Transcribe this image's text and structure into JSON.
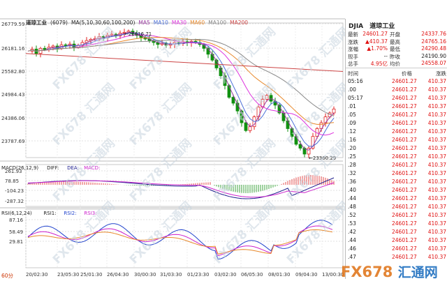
{
  "chart": {
    "name": "道琼工业",
    "code": "6079",
    "ma_label": "MA(5,10,30,60,100,200)",
    "ma_series": [
      {
        "name": "MA5",
        "color": "#9a3aa0"
      },
      {
        "name": "MA10",
        "color": "#4b6fd8"
      },
      {
        "name": "MA30",
        "color": "#dd33dd"
      },
      {
        "name": "MA60",
        "color": "#e8882a"
      },
      {
        "name": "MA100",
        "color": "#888888"
      },
      {
        "name": "MA200",
        "color": "#cc4444"
      }
    ],
    "price_ticks": [
      "26779.59",
      "26181.16",
      "25582.80",
      "24984.43",
      "24386.06",
      "23787.69"
    ],
    "high_label": "26616.71",
    "low_label": "23360.29",
    "macd_label": "MACD(26,12,9)",
    "macd_series": [
      "DIFF:",
      "DEA:",
      "MACD:"
    ],
    "macd_ticks": [
      "261.93",
      "78.85",
      "-104.23",
      "-287.32"
    ],
    "rsi_label": "RSI(6,12,24)",
    "rsi_series": [
      "RSI1:",
      "RSI2:",
      "RSI3:"
    ],
    "rsi_ticks": [
      "87.16",
      "58.49",
      "29.81"
    ],
    "date_ticks": [
      "20/02:30",
      "23/05:30",
      "25/01:30",
      "26/04:30",
      "30/00:30",
      "31/03:30",
      "01/23:30",
      "03/02:30",
      "06/05:30",
      "08/01:30",
      "09/04:30",
      "13/00:30"
    ],
    "period_label": "60分",
    "watermark": "FX678 汇通网"
  },
  "chart_data": {
    "type": "candlestick",
    "ylim": [
      23400,
      26779.59
    ],
    "high": 26616.71,
    "low": 23360.29,
    "close": 24601.27,
    "ma_colors": {
      "MA5": "#9a3aa0",
      "MA10": "#4b6fd8",
      "MA30": "#dd33dd",
      "MA60": "#e8882a",
      "MA100": "#888888",
      "MA200": "#cc4444"
    },
    "macd_ylim": [
      -287.32,
      261.93
    ],
    "rsi_ylim": [
      0,
      100
    ]
  },
  "panel": {
    "code": "DJIA",
    "name": "道琼工业",
    "rows": [
      {
        "l1": "最新",
        "v1": "24601.27",
        "c1": "up",
        "l2": "开盘",
        "v2": "24337.76",
        "c2": "up"
      },
      {
        "l1": "涨跌",
        "v1": "▲410.37",
        "c1": "up",
        "l2": "最高",
        "v2": "24765.16",
        "c2": "up"
      },
      {
        "l1": "涨幅",
        "v1": "▲1.70%",
        "c1": "up",
        "l2": "最低",
        "v2": "24290.48",
        "c2": "up"
      },
      {
        "l1": "现手",
        "v1": "--",
        "c1": "",
        "l2": "昨收",
        "v2": "24190.90",
        "c2": ""
      },
      {
        "l1": "总手",
        "v1": "4.95亿",
        "c1": "up",
        "l2": "均价",
        "v2": "24558.07",
        "c2": "up"
      }
    ],
    "table_headers": {
      "time": "时间",
      "price": "价格",
      "change": "涨跌"
    },
    "ticks": [
      {
        "time": "05:16",
        "price": "24601.27",
        "change": "410.37"
      },
      {
        "time": ".00",
        "price": "24601.27",
        "change": "410.37"
      },
      {
        "time": "05:17",
        "price": "24601.27",
        "change": "410.37"
      },
      {
        "time": ".01",
        "price": "24601.27",
        "change": "410.37"
      },
      {
        "time": ".05",
        "price": "24601.27",
        "change": "410.37"
      },
      {
        "time": ".09",
        "price": "24601.27",
        "change": "410.37"
      },
      {
        "time": ".12",
        "price": "24601.27",
        "change": "410.37"
      },
      {
        "time": ".16",
        "price": "24601.27",
        "change": "410.37"
      },
      {
        "time": ".20",
        "price": "24601.27",
        "change": "410.37"
      },
      {
        "time": ".25",
        "price": "24601.27",
        "change": "410.37"
      },
      {
        "time": ".28",
        "price": "24601.27",
        "change": "410.37"
      },
      {
        "time": ".32",
        "price": "24601.27",
        "change": "410.37"
      },
      {
        "time": ".36",
        "price": "24601.27",
        "change": "410.37"
      },
      {
        "time": ".40",
        "price": "24601.27",
        "change": "410.37"
      },
      {
        "time": ".44",
        "price": "24601.27",
        "change": "410.37"
      },
      {
        "time": ".48",
        "price": "24601.27",
        "change": "410.37"
      },
      {
        "time": ".52",
        "price": "24601.27",
        "change": "410.37"
      },
      {
        "time": ".53",
        "price": "24601.27",
        "change": "410.37"
      },
      {
        "time": ".42",
        "price": "24601.27",
        "change": "410.37"
      },
      {
        "time": ".44",
        "price": "24601.27",
        "change": "410.37"
      },
      {
        "time": ".46",
        "price": "24601.27",
        "change": "410.37"
      },
      {
        "time": ".47",
        "price": "24601.27",
        "change": "410.37"
      }
    ]
  },
  "logo": {
    "text": "FX678",
    "cn": "汇通网"
  }
}
